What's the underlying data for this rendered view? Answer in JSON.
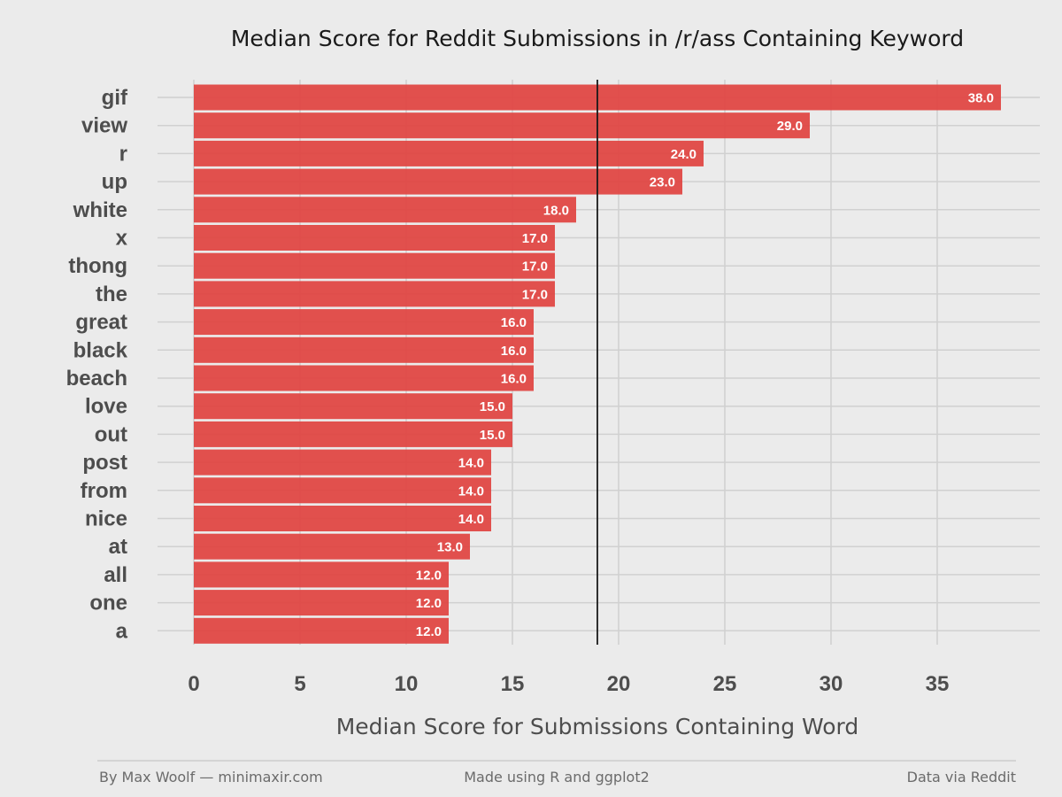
{
  "chart_data": {
    "type": "bar",
    "orientation": "horizontal",
    "title": "Median Score for Reddit Submissions in /r/ass Containing Keyword",
    "xlabel": "Median Score for Submissions Containing Word",
    "ylabel": "",
    "categories": [
      "gif",
      "view",
      "r",
      "up",
      "white",
      "x",
      "thong",
      "the",
      "great",
      "black",
      "beach",
      "love",
      "out",
      "post",
      "from",
      "nice",
      "at",
      "all",
      "one",
      "a"
    ],
    "values": [
      38,
      29,
      24,
      23,
      18,
      17,
      17,
      17,
      16,
      16,
      16,
      15,
      15,
      14,
      14,
      14,
      13,
      12,
      12,
      12
    ],
    "value_labels": [
      "38.0",
      "29.0",
      "24.0",
      "23.0",
      "18.0",
      "17.0",
      "17.0",
      "17.0",
      "16.0",
      "16.0",
      "16.0",
      "15.0",
      "15.0",
      "14.0",
      "14.0",
      "14.0",
      "13.0",
      "12.0",
      "12.0",
      "12.0"
    ],
    "xlim": [
      0,
      39.5
    ],
    "x_ticks": [
      0,
      5,
      10,
      15,
      20,
      25,
      30,
      35
    ],
    "reference_line": 19,
    "grid": true,
    "bar_color": "#e0423f",
    "reference_line_color": "#1a1a1a"
  },
  "footer": {
    "left": "By Max Woolf — minimaxir.com",
    "center": "Made using R and ggplot2",
    "right": "Data via Reddit"
  }
}
